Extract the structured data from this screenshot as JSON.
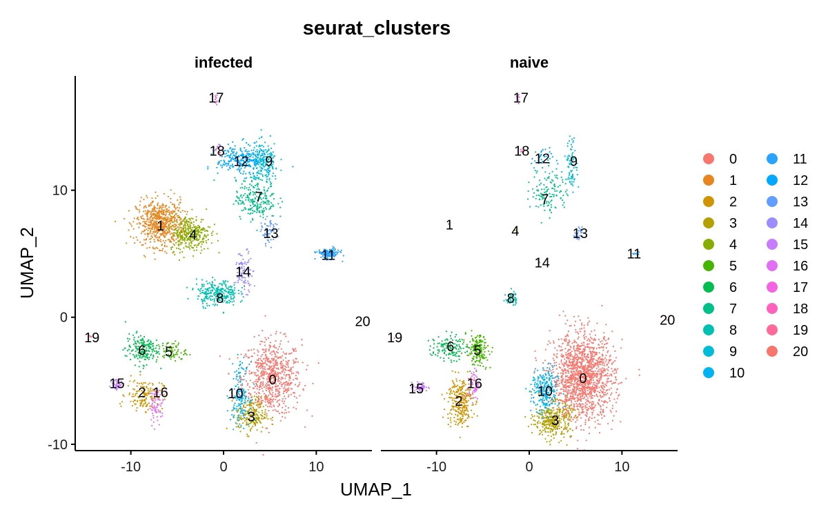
{
  "chart_data": {
    "type": "scatter",
    "title": "seurat_clusters",
    "xlabel": "UMAP_1",
    "ylabel": "UMAP_2",
    "xlim": [
      -16,
      16
    ],
    "ylim": [
      -10.5,
      19
    ],
    "x_ticks": [
      "-10",
      "0",
      "10"
    ],
    "y_ticks": [
      "-10",
      "0",
      "10"
    ],
    "x_tick_values": [
      -10,
      0,
      10
    ],
    "y_tick_values": [
      -10,
      0,
      10
    ],
    "grid": false,
    "legend_position": "right",
    "legend_columns": 2,
    "palette": [
      "#F8766D",
      "#E7851E",
      "#D09400",
      "#B2A100",
      "#89AC00",
      "#45B500",
      "#00BC51",
      "#00C087",
      "#00C0B2",
      "#00BCD6",
      "#00B3F2",
      "#29A3FF",
      "#00A9FF",
      "#619CFF",
      "#9C8DFF",
      "#C77CFF",
      "#E46DF6",
      "#F464E2",
      "#FF62BC",
      "#FF6A9A",
      "#F8766D"
    ],
    "clusters": [
      "0",
      "1",
      "2",
      "3",
      "4",
      "5",
      "6",
      "7",
      "8",
      "9",
      "10",
      "11",
      "12",
      "13",
      "14",
      "15",
      "16",
      "17",
      "18",
      "19",
      "20"
    ],
    "panels": [
      {
        "name": "infected",
        "clusters": [
          {
            "id": "0",
            "cx": 5.2,
            "cy": -4.8,
            "sx": 1.6,
            "sy": 1.5,
            "n": 700,
            "label_x": 5.3,
            "label_y": -4.9
          },
          {
            "id": "1",
            "cx": -6.8,
            "cy": 7.4,
            "sx": 1.3,
            "sy": 0.9,
            "n": 650,
            "label_x": -6.8,
            "label_y": 7.2
          },
          {
            "id": "2",
            "cx": -8.5,
            "cy": -6.1,
            "sx": 1.0,
            "sy": 0.6,
            "n": 150,
            "label_x": -8.8,
            "label_y": -5.9
          },
          {
            "id": "3",
            "cx": 3.0,
            "cy": -7.7,
            "sx": 0.8,
            "sy": 0.7,
            "n": 200,
            "label_x": 3.0,
            "label_y": -7.8
          },
          {
            "id": "4",
            "cx": -3.6,
            "cy": 6.6,
            "sx": 1.1,
            "sy": 0.7,
            "n": 320,
            "label_x": -3.3,
            "label_y": 6.5
          },
          {
            "id": "5",
            "cx": -5.6,
            "cy": -2.7,
            "sx": 0.8,
            "sy": 0.4,
            "n": 70,
            "label_x": -5.9,
            "label_y": -2.7
          },
          {
            "id": "6",
            "cx": -8.8,
            "cy": -2.5,
            "sx": 0.9,
            "sy": 0.6,
            "n": 180,
            "label_x": -8.8,
            "label_y": -2.6
          },
          {
            "id": "7",
            "cx": 3.5,
            "cy": 9.3,
            "sx": 1.1,
            "sy": 0.8,
            "n": 220,
            "label_x": 3.8,
            "label_y": 9.5
          },
          {
            "id": "8",
            "cx": -0.7,
            "cy": 1.9,
            "sx": 1.1,
            "sy": 0.5,
            "n": 280,
            "label_x": -0.4,
            "label_y": 1.5
          },
          {
            "id": "9",
            "cx": 4.4,
            "cy": 12.1,
            "sx": 0.8,
            "sy": 0.8,
            "n": 200,
            "label_x": 4.9,
            "label_y": 12.3
          },
          {
            "id": "10",
            "cx": 1.8,
            "cy": -6.0,
            "sx": 0.5,
            "sy": 1.2,
            "n": 150,
            "label_x": 1.3,
            "label_y": -6.0
          },
          {
            "id": "11",
            "cx": 11.3,
            "cy": 5.0,
            "sx": 0.6,
            "sy": 0.2,
            "n": 150,
            "label_x": 11.3,
            "label_y": 4.9
          },
          {
            "id": "12",
            "cx": 1.9,
            "cy": 12.4,
            "sx": 1.3,
            "sy": 0.6,
            "n": 250,
            "label_x": 1.9,
            "label_y": 12.3
          },
          {
            "id": "13",
            "cx": 4.9,
            "cy": 6.7,
            "sx": 0.4,
            "sy": 0.5,
            "n": 60,
            "label_x": 5.1,
            "label_y": 6.6
          },
          {
            "id": "14",
            "cx": 2.2,
            "cy": 3.6,
            "sx": 0.5,
            "sy": 0.8,
            "n": 90,
            "label_x": 2.1,
            "label_y": 3.6
          },
          {
            "id": "15",
            "cx": -11.5,
            "cy": -5.3,
            "sx": 0.3,
            "sy": 0.2,
            "n": 40,
            "label_x": -11.5,
            "label_y": -5.2
          },
          {
            "id": "16",
            "cx": -7.2,
            "cy": -6.9,
            "sx": 0.4,
            "sy": 0.7,
            "n": 70,
            "label_x": -6.8,
            "label_y": -5.9
          },
          {
            "id": "17",
            "cx": -0.8,
            "cy": 17.2,
            "sx": 0.1,
            "sy": 0.2,
            "n": 10,
            "label_x": -0.8,
            "label_y": 17.3
          },
          {
            "id": "18",
            "cx": -0.5,
            "cy": 13.2,
            "sx": 0.2,
            "sy": 0.2,
            "n": 10,
            "label_x": -0.7,
            "label_y": 13.1
          },
          {
            "id": "19",
            "cx": -14.3,
            "cy": -1.5,
            "sx": 0.1,
            "sy": 0.1,
            "n": 3,
            "label_x": -14.2,
            "label_y": -1.6
          },
          {
            "id": "20",
            "cx": 15.1,
            "cy": -0.3,
            "sx": 0.05,
            "sy": 0.05,
            "n": 1,
            "label_x": 15.0,
            "label_y": -0.3
          }
        ]
      },
      {
        "name": "naive",
        "clusters": [
          {
            "id": "0",
            "cx": 5.8,
            "cy": -4.7,
            "sx": 1.7,
            "sy": 1.7,
            "n": 1500,
            "label_x": 5.8,
            "label_y": -4.8
          },
          {
            "id": "1",
            "cx": -8.6,
            "cy": 7.3,
            "sx": 0.05,
            "sy": 0.05,
            "n": 1,
            "label_x": -8.6,
            "label_y": 7.3
          },
          {
            "id": "2",
            "cx": -7.5,
            "cy": -6.6,
            "sx": 0.7,
            "sy": 1.0,
            "n": 280,
            "label_x": -7.6,
            "label_y": -6.6
          },
          {
            "id": "3",
            "cx": 2.6,
            "cy": -8.1,
            "sx": 1.0,
            "sy": 0.7,
            "n": 350,
            "label_x": 2.8,
            "label_y": -8.1
          },
          {
            "id": "4",
            "cx": -1.5,
            "cy": 6.8,
            "sx": 0.1,
            "sy": 0.1,
            "n": 4,
            "label_x": -1.5,
            "label_y": 6.8
          },
          {
            "id": "5",
            "cx": -5.6,
            "cy": -2.6,
            "sx": 0.6,
            "sy": 0.6,
            "n": 180,
            "label_x": -5.6,
            "label_y": -2.6
          },
          {
            "id": "6",
            "cx": -8.7,
            "cy": -2.4,
            "sx": 0.9,
            "sy": 0.5,
            "n": 120,
            "label_x": -8.5,
            "label_y": -2.3
          },
          {
            "id": "7",
            "cx": 2.2,
            "cy": 10.0,
            "sx": 1.0,
            "sy": 1.0,
            "n": 130,
            "label_x": 1.7,
            "label_y": 9.3
          },
          {
            "id": "8",
            "cx": -1.9,
            "cy": 1.5,
            "sx": 0.3,
            "sy": 0.3,
            "n": 40,
            "label_x": -2.0,
            "label_y": 1.5
          },
          {
            "id": "9",
            "cx": 4.6,
            "cy": 12.0,
            "sx": 0.3,
            "sy": 1.0,
            "n": 80,
            "label_x": 4.8,
            "label_y": 12.3
          },
          {
            "id": "10",
            "cx": 1.7,
            "cy": -5.8,
            "sx": 0.7,
            "sy": 0.9,
            "n": 250,
            "label_x": 1.7,
            "label_y": -5.8
          },
          {
            "id": "11",
            "cx": 11.5,
            "cy": 5.0,
            "sx": 0.3,
            "sy": 0.1,
            "n": 12,
            "label_x": 11.3,
            "label_y": 5.0
          },
          {
            "id": "12",
            "cx": 1.4,
            "cy": 12.5,
            "sx": 0.6,
            "sy": 0.4,
            "n": 30,
            "label_x": 1.4,
            "label_y": 12.5
          },
          {
            "id": "13",
            "cx": 5.3,
            "cy": 6.5,
            "sx": 0.2,
            "sy": 0.3,
            "n": 25,
            "label_x": 5.5,
            "label_y": 6.6
          },
          {
            "id": "14",
            "cx": 1.0,
            "cy": 4.4,
            "sx": 0.1,
            "sy": 0.1,
            "n": 4,
            "label_x": 1.4,
            "label_y": 4.3
          },
          {
            "id": "15",
            "cx": -11.7,
            "cy": -5.5,
            "sx": 0.4,
            "sy": 0.2,
            "n": 50,
            "label_x": -12.2,
            "label_y": -5.6
          },
          {
            "id": "16",
            "cx": -6.0,
            "cy": -5.3,
            "sx": 0.3,
            "sy": 0.6,
            "n": 60,
            "label_x": -5.9,
            "label_y": -5.2
          },
          {
            "id": "17",
            "cx": -1.1,
            "cy": 17.3,
            "sx": 0.1,
            "sy": 0.2,
            "n": 10,
            "label_x": -0.9,
            "label_y": 17.3
          },
          {
            "id": "18",
            "cx": -0.8,
            "cy": 13.1,
            "sx": 0.1,
            "sy": 0.1,
            "n": 4,
            "label_x": -0.8,
            "label_y": 13.1
          },
          {
            "id": "19",
            "cx": -14.6,
            "cy": -1.6,
            "sx": 0.05,
            "sy": 0.05,
            "n": 1,
            "label_x": -14.5,
            "label_y": -1.6
          },
          {
            "id": "20",
            "cx": 14.9,
            "cy": -0.2,
            "sx": 0.05,
            "sy": 0.05,
            "n": 1,
            "label_x": 14.9,
            "label_y": -0.2
          }
        ]
      }
    ]
  }
}
